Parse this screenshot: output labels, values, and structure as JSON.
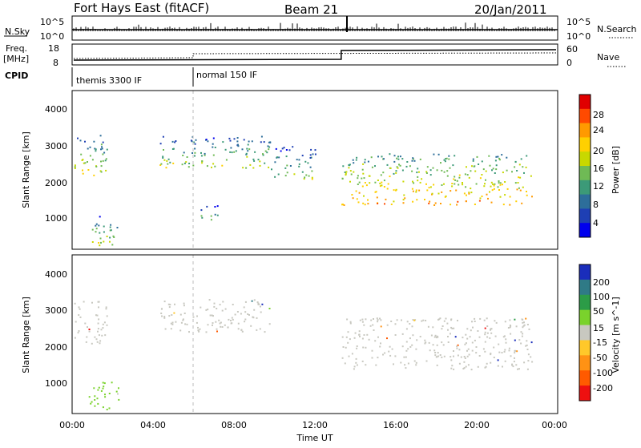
{
  "header": {
    "site": "Fort Hays East (fitACF)",
    "beam": "Beam 21",
    "date": "20/Jan/2011"
  },
  "nsky_panel": {
    "left_label": "N.Sky",
    "left_ticks": [
      "10^5",
      "10^0"
    ],
    "right_label": "N.Search",
    "right_ticks": [
      "10^5",
      "10^0"
    ]
  },
  "freq_panel": {
    "left_label_top": "Freq.",
    "left_label_unit": "[MHz]",
    "left_ticks": [
      "18",
      "8"
    ],
    "right_label": "Nave",
    "right_ticks": [
      "60",
      "0"
    ]
  },
  "cpid": {
    "label": "CPID",
    "modes": [
      "themis 3300 IF",
      "normal 150 IF"
    ]
  },
  "x_axis": {
    "ticks": [
      "00:00",
      "04:00",
      "08:00",
      "12:00",
      "16:00",
      "20:00",
      "00:00"
    ],
    "title": "Time UT"
  },
  "y_axis": {
    "title": "Slant Range [km]",
    "ticks": [
      "4000",
      "3000",
      "2000",
      "1000"
    ]
  },
  "power_colorbar": {
    "title": "Power [dB]",
    "ticks": [
      "28",
      "24",
      "20",
      "16",
      "12",
      "8",
      "4"
    ],
    "colors": [
      "#e00000",
      "#ff4a00",
      "#ff9a00",
      "#ffd000",
      "#c8d800",
      "#6fba55",
      "#3c9a78",
      "#2d6e9a",
      "#1e3fb4",
      "#0000ee"
    ]
  },
  "velocity_colorbar": {
    "title": "Velocity [m s^-1]",
    "ticks": [
      "200",
      "100",
      "50",
      "15",
      "-15",
      "-50",
      "-100",
      "-200"
    ],
    "colors": [
      "#1a2dbb",
      "#2f7a86",
      "#2c9c47",
      "#7ad22c",
      "#c8c8c0",
      "#ffc82a",
      "#ff9214",
      "#ff5a00",
      "#ee1010"
    ]
  },
  "chart_data": {
    "type": "heatmap",
    "x_range_hours": [
      0,
      24
    ],
    "y_range_km": [
      180,
      4500
    ],
    "power_regions": [
      {
        "t0": 0.1,
        "t1": 1.7,
        "r0": 2100,
        "r1": 3300,
        "mean_db": 12
      },
      {
        "t0": 0.8,
        "t1": 2.3,
        "r0": 300,
        "r1": 1100,
        "mean_db": 10
      },
      {
        "t0": 4.3,
        "t1": 9.8,
        "r0": 2400,
        "r1": 3300,
        "mean_db": 10
      },
      {
        "t0": 9.8,
        "t1": 12.0,
        "r0": 2100,
        "r1": 3000,
        "mean_db": 8
      },
      {
        "t0": 13.3,
        "t1": 22.7,
        "r0": 1400,
        "r1": 2800,
        "mean_db": 16
      },
      {
        "t0": 6.2,
        "t1": 7.3,
        "r0": 1000,
        "r1": 1400,
        "mean_db": 8
      }
    ],
    "velocity_regions": [
      {
        "t0": 0.1,
        "t1": 1.7,
        "r0": 2100,
        "r1": 3300,
        "vel": 0
      },
      {
        "t0": 4.3,
        "t1": 9.8,
        "r0": 2400,
        "r1": 3300,
        "vel": 0
      },
      {
        "t0": 13.3,
        "t1": 22.7,
        "r0": 1400,
        "r1": 2800,
        "vel": 0
      },
      {
        "t0": 0.8,
        "t1": 2.3,
        "r0": 300,
        "r1": 1100,
        "vel": 20
      }
    ],
    "cpid_change_time_hours": 6.0,
    "freq_step_time_hours": 13.3
  }
}
